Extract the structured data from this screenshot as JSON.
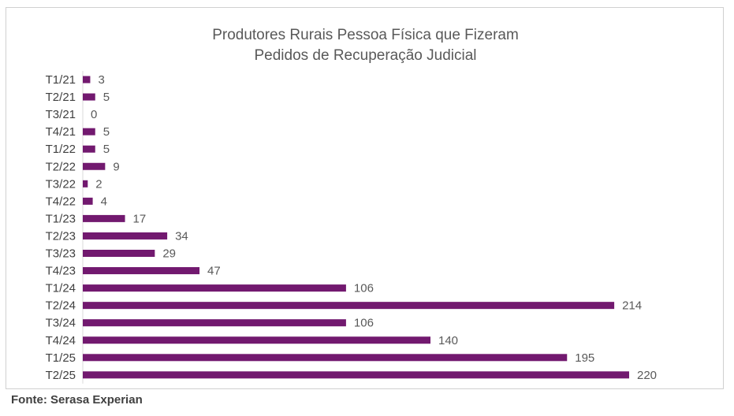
{
  "chart_data": {
    "type": "bar",
    "orientation": "horizontal",
    "title_line1": "Produtores Rurais Pessoa Física que Fizeram",
    "title_line2": "Pedidos de Recuperação Judicial",
    "categories": [
      "T1/21",
      "T2/21",
      "T3/21",
      "T4/21",
      "T1/22",
      "T2/22",
      "T3/22",
      "T4/22",
      "T1/23",
      "T2/23",
      "T3/23",
      "T4/23",
      "T1/24",
      "T2/24",
      "T3/24",
      "T4/24",
      "T1/25",
      "T2/25"
    ],
    "values": [
      3,
      5,
      0,
      5,
      5,
      9,
      2,
      4,
      17,
      34,
      29,
      47,
      106,
      214,
      106,
      140,
      195,
      220
    ],
    "bar_color": "#72196f",
    "data_labels": true,
    "value_axis_visible": false,
    "grid": false,
    "legend": "none"
  },
  "footer": {
    "source": "Fonte: Serasa Experian"
  }
}
